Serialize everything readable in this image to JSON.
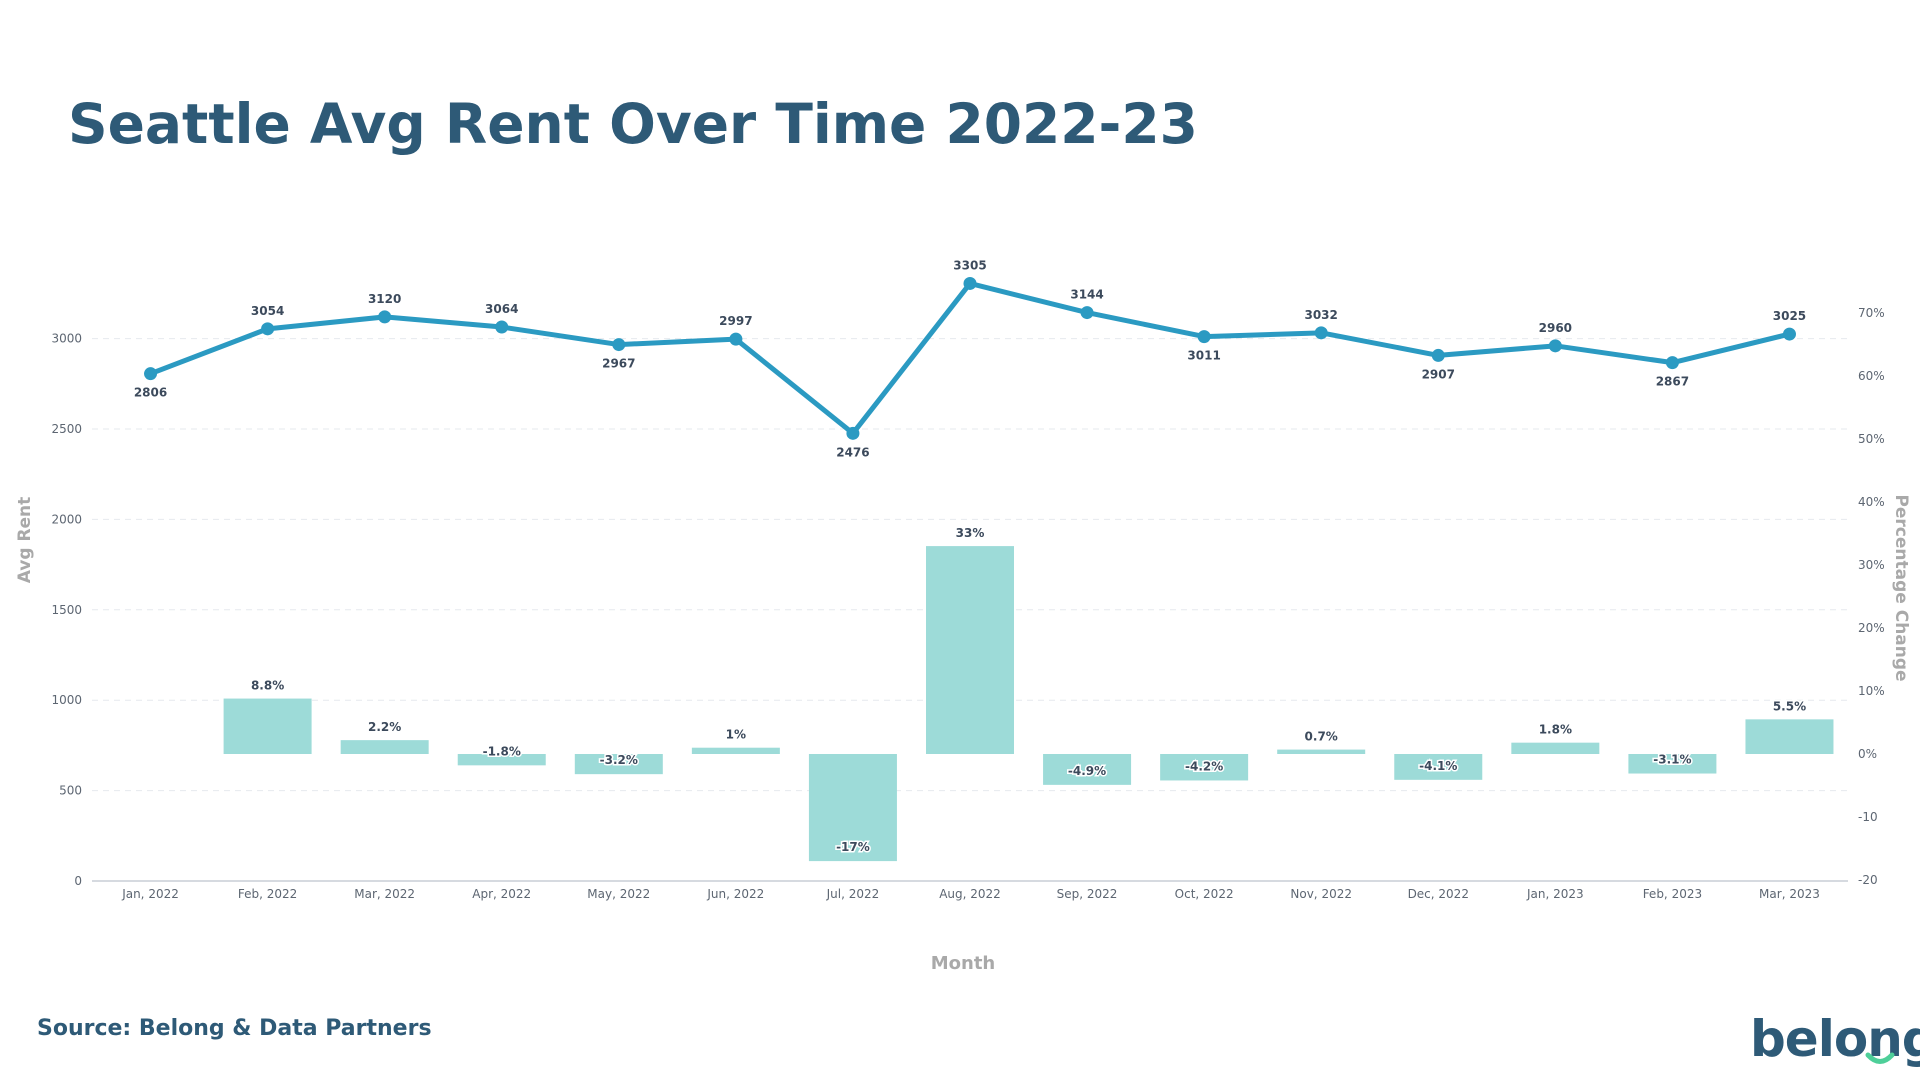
{
  "title": "Seattle Avg Rent Over Time 2022-23",
  "source": "Source: Belong & Data Partners",
  "logo": {
    "text": "belong",
    "accent_color": "#4ecf99"
  },
  "colors": {
    "line": "#2b9ac2",
    "bar": "#9ddbd8",
    "title": "#2e5a77",
    "axis_label": "#a9a9a9",
    "tick": "#5d6672",
    "grid": "#e6e9ee"
  },
  "chart_data": {
    "type": "combo-line-bar",
    "categories": [
      "Jan, 2022",
      "Feb, 2022",
      "Mar, 2022",
      "Apr, 2022",
      "May, 2022",
      "Jun, 2022",
      "Jul, 2022",
      "Aug, 2022",
      "Sep, 2022",
      "Oct, 2022",
      "Nov, 2022",
      "Dec, 2022",
      "Jan, 2023",
      "Feb, 2023",
      "Mar, 2023"
    ],
    "series": [
      {
        "type": "line",
        "axis": "left",
        "values": [
          2806,
          3054,
          3120,
          3064,
          2967,
          2997,
          2476,
          3305,
          3144,
          3011,
          3032,
          2907,
          2960,
          2867,
          3025
        ],
        "labels": [
          "2806",
          "3054",
          "3120",
          "3064",
          "2967",
          "2997",
          "2476",
          "3305",
          "3144",
          "3011",
          "3032",
          "2907",
          "2960",
          "2867",
          "3025"
        ]
      },
      {
        "type": "bar",
        "axis": "right",
        "values": [
          null,
          8.8,
          2.2,
          -1.8,
          -3.2,
          1,
          -17,
          33,
          -4.9,
          -4.2,
          0.7,
          -4.1,
          1.8,
          -3.1,
          5.5
        ],
        "labels": [
          "",
          "8.8%",
          "2.2%",
          "-1.8%",
          "-3.2%",
          "1%",
          "-17%",
          "33%",
          "-4.9%",
          "-4.2%",
          "0.7%",
          "-4.1%",
          "1.8%",
          "-3.1%",
          "5.5%"
        ]
      }
    ],
    "xlabel": "Month",
    "ylabel": "Avg Rent",
    "y2label": "Percentage Change",
    "ylim": [
      0,
      3300
    ],
    "y2lim": [
      -20,
      70
    ],
    "yticks": [
      "0",
      "500",
      "1000",
      "1500",
      "2000",
      "2500",
      "3000"
    ],
    "y2ticks": [
      "-20",
      "-10",
      "0%",
      "10%",
      "20%",
      "30%",
      "40%",
      "50%",
      "60%",
      "70%"
    ],
    "grid": true
  }
}
